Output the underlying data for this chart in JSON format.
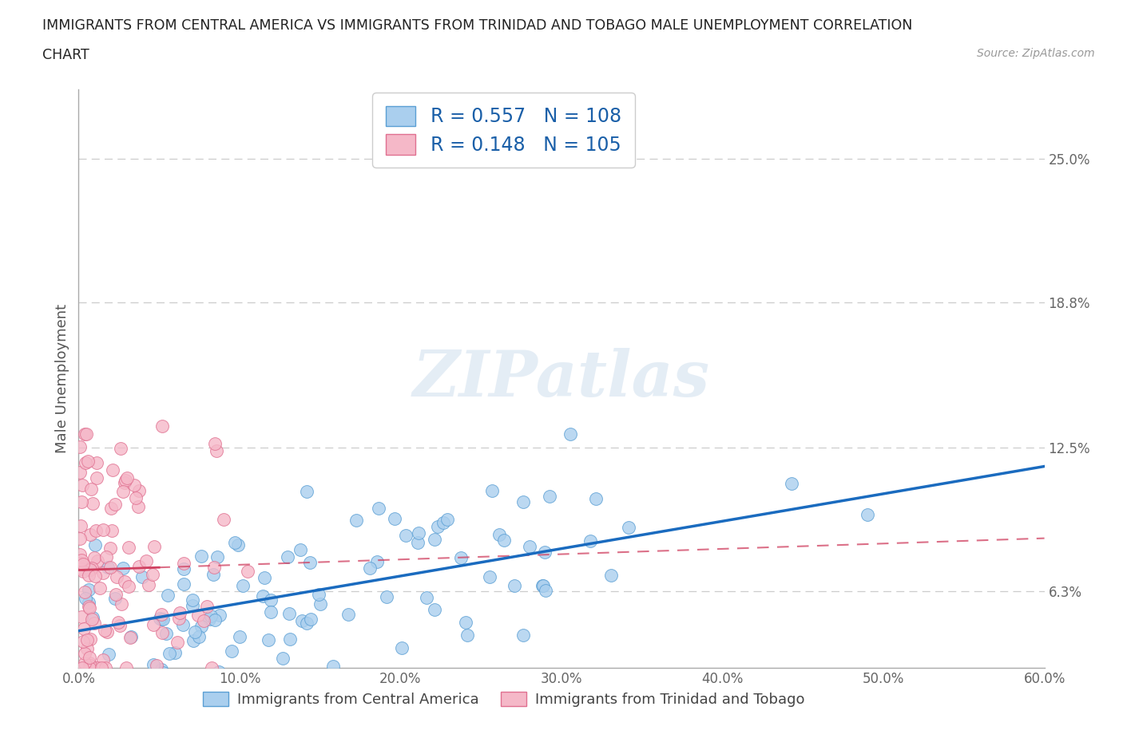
{
  "title_line1": "IMMIGRANTS FROM CENTRAL AMERICA VS IMMIGRANTS FROM TRINIDAD AND TOBAGO MALE UNEMPLOYMENT CORRELATION",
  "title_line2": "CHART",
  "source": "Source: ZipAtlas.com",
  "ylabel": "Male Unemployment",
  "series1_label": "Immigrants from Central America",
  "series2_label": "Immigrants from Trinidad and Tobago",
  "series1_color": "#aacfee",
  "series1_edge_color": "#5a9fd4",
  "series1_line_color": "#1a6bbf",
  "series2_color": "#f5b8c8",
  "series2_edge_color": "#e07090",
  "series2_line_color": "#d04060",
  "series1_R": 0.557,
  "series1_N": 108,
  "series2_R": 0.148,
  "series2_N": 105,
  "xlim": [
    0.0,
    0.6
  ],
  "ylim": [
    0.03,
    0.28
  ],
  "yticks": [
    0.063,
    0.125,
    0.188,
    0.25
  ],
  "ytick_labels": [
    "6.3%",
    "12.5%",
    "18.8%",
    "25.0%"
  ],
  "xticks": [
    0.0,
    0.1,
    0.2,
    0.3,
    0.4,
    0.5,
    0.6
  ],
  "xtick_labels": [
    "0.0%",
    "10.0%",
    "20.0%",
    "30.0%",
    "40.0%",
    "50.0%",
    "60.0%"
  ],
  "watermark": "ZIPatlas",
  "background_color": "#ffffff",
  "grid_color": "#cccccc",
  "title_color": "#222222",
  "legend_text_color": "#1a5fa8"
}
